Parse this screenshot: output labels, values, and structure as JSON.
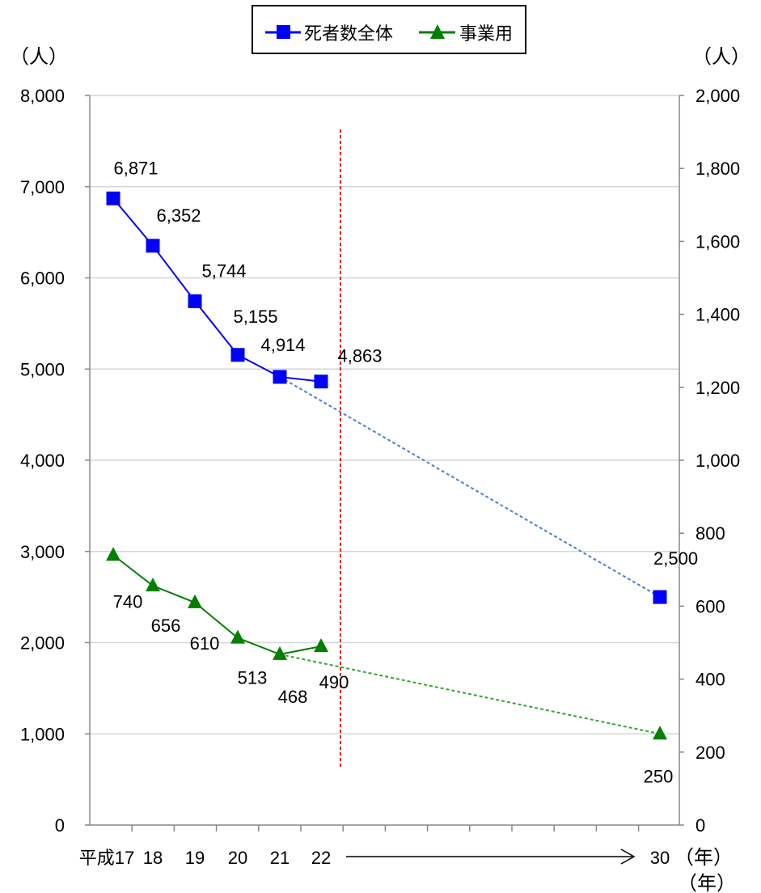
{
  "chart_data": {
    "type": "line",
    "left_unit": "（人）",
    "right_unit": "（人）",
    "left_axis": {
      "min": 0,
      "max": 8000,
      "step": 1000,
      "ticks": [
        "0",
        "1,000",
        "2,000",
        "3,000",
        "4,000",
        "5,000",
        "6,000",
        "7,000",
        "8,000"
      ]
    },
    "right_axis": {
      "min": 0,
      "max": 2000,
      "step": 200,
      "ticks": [
        "0",
        "200",
        "400",
        "600",
        "800",
        "1,000",
        "1,200",
        "1,400",
        "1,600",
        "1,800",
        "2,000"
      ]
    },
    "x_tick_labels": [
      {
        "label": "平成17",
        "year": 17
      },
      {
        "label": "18",
        "year": 18
      },
      {
        "label": "19",
        "year": 19
      },
      {
        "label": "20",
        "year": 20
      },
      {
        "label": "21",
        "year": 21
      },
      {
        "label": "22",
        "year": 22
      },
      {
        "label": "30",
        "year": 30
      }
    ],
    "x_unit_label": "（年）",
    "x_unit_label_2": "（年）",
    "legend": [
      {
        "name": "死者数全体",
        "color": "#0000ff",
        "marker": "square"
      },
      {
        "name": "事業用",
        "color": "#008000",
        "marker": "triangle"
      }
    ],
    "series": [
      {
        "name": "死者数全体",
        "axis": "left",
        "color": "#0000ff",
        "marker": "square",
        "years": [
          17,
          18,
          19,
          20,
          21,
          22
        ],
        "values": [
          6871,
          6352,
          5744,
          5155,
          4914,
          4863
        ],
        "labels": [
          "6,871",
          "6,352",
          "5,744",
          "5,155",
          "4,914",
          "4,863"
        ],
        "target": {
          "from_year": 21,
          "year": 30,
          "value": 2500,
          "label": "2,500",
          "line_color": "#4a7fd4"
        }
      },
      {
        "name": "事業用",
        "axis": "right",
        "color": "#008000",
        "marker": "triangle",
        "years": [
          17,
          18,
          19,
          20,
          21,
          22
        ],
        "values": [
          740,
          656,
          610,
          513,
          468,
          490
        ],
        "labels": [
          "740",
          "656",
          "610",
          "513",
          "468",
          "490"
        ],
        "target": {
          "from_year": 21,
          "year": 30,
          "value": 250,
          "label": "250",
          "line_color": "#2ea82e"
        }
      }
    ],
    "divider": {
      "color": "#e02020",
      "style": "dashed"
    },
    "grid": true
  }
}
